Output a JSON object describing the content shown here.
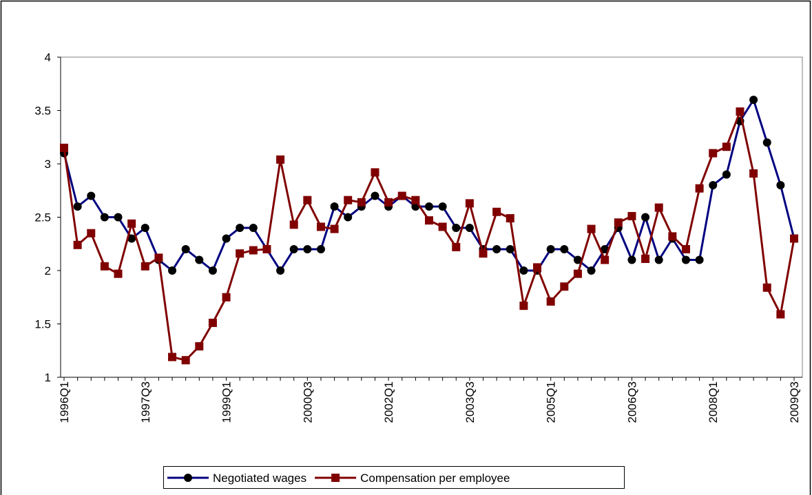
{
  "chart_data": {
    "type": "line",
    "categories": [
      "1996Q1",
      null,
      null,
      null,
      null,
      null,
      "1997Q3",
      null,
      null,
      null,
      null,
      null,
      "1999Q1",
      null,
      null,
      null,
      null,
      null,
      "2000Q3",
      null,
      null,
      null,
      null,
      null,
      "2002Q1",
      null,
      null,
      null,
      null,
      null,
      "2003Q3",
      null,
      null,
      null,
      null,
      null,
      "2005Q1",
      null,
      null,
      null,
      null,
      null,
      "2006Q3",
      null,
      null,
      null,
      null,
      null,
      "2008Q1",
      null,
      null,
      null,
      null,
      null,
      "2009Q3"
    ],
    "series": [
      {
        "name": "Negotiated wages",
        "color": "#000080",
        "marker": "circle",
        "values": [
          3.1,
          2.6,
          2.7,
          2.5,
          2.5,
          2.3,
          2.4,
          2.1,
          2.0,
          2.2,
          2.1,
          2.0,
          2.3,
          2.4,
          2.4,
          2.2,
          2.0,
          2.2,
          2.2,
          2.2,
          2.6,
          2.5,
          2.6,
          2.7,
          2.6,
          2.7,
          2.6,
          2.6,
          2.6,
          2.4,
          2.4,
          2.2,
          2.2,
          2.2,
          2.0,
          2.0,
          2.2,
          2.2,
          2.1,
          2.0,
          2.2,
          2.4,
          2.1,
          2.5,
          2.1,
          2.3,
          2.1,
          2.1,
          2.8,
          2.9,
          3.4,
          3.6,
          3.2,
          2.8,
          2.3
        ]
      },
      {
        "name": "Compensation per employee",
        "color": "#800000",
        "marker": "square",
        "values": [
          3.15,
          2.24,
          2.35,
          2.04,
          1.97,
          2.44,
          2.04,
          2.12,
          1.19,
          1.16,
          1.29,
          1.51,
          1.75,
          2.16,
          2.19,
          2.2,
          3.04,
          2.43,
          2.66,
          2.41,
          2.39,
          2.66,
          2.64,
          2.92,
          2.64,
          2.7,
          2.66,
          2.47,
          2.41,
          2.22,
          2.63,
          2.16,
          2.55,
          2.49,
          1.67,
          2.03,
          1.71,
          1.85,
          1.97,
          2.39,
          2.1,
          2.45,
          2.51,
          2.11,
          2.59,
          2.32,
          2.2,
          2.77,
          3.1,
          3.16,
          3.49,
          2.91,
          1.84,
          1.59,
          2.3
        ]
      }
    ],
    "ylim": [
      1,
      4
    ],
    "yticks": [
      1,
      1.5,
      2,
      2.5,
      3,
      3.5,
      4
    ],
    "grid": false,
    "legend": "bottom"
  }
}
